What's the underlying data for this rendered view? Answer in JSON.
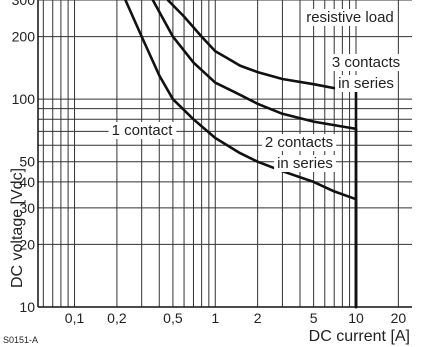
{
  "chart_data": {
    "type": "line",
    "xlabel": "DC current [A]",
    "ylabel": "DC voltage [Vdc]",
    "x_scale": "log",
    "y_scale": "log",
    "xlim": [
      0.055,
      25
    ],
    "ylim": [
      10,
      300
    ],
    "x_ticks": [
      0.1,
      0.2,
      0.5,
      1,
      2,
      5,
      10,
      20
    ],
    "x_tick_labels": [
      "0,1",
      "0,2",
      "0,5",
      "1",
      "2",
      "5",
      "10",
      "20"
    ],
    "y_ticks": [
      10,
      20,
      30,
      40,
      50,
      100,
      200,
      300
    ],
    "y_tick_labels": [
      "10",
      "20",
      "30",
      "40",
      "50",
      "100",
      "200",
      "300"
    ],
    "grid": true,
    "reference_code": "S0151-A",
    "annotations": [
      {
        "text": "resistive load"
      },
      {
        "text": "3 contacts"
      },
      {
        "text": "in series"
      },
      {
        "text": "1 contact"
      },
      {
        "text": "2 contacts"
      },
      {
        "text": "in series"
      }
    ],
    "series": [
      {
        "name": "1 contact",
        "x": [
          0.23,
          0.3,
          0.4,
          0.5,
          0.7,
          1,
          1.5,
          2,
          3,
          5,
          7,
          10,
          10
        ],
        "y": [
          300,
          200,
          130,
          100,
          80,
          65,
          55,
          50,
          45,
          40,
          36,
          33,
          10
        ]
      },
      {
        "name": "2 contacts in series",
        "x": [
          0.36,
          0.5,
          0.7,
          1,
          1.5,
          2,
          3,
          5,
          7,
          10,
          10
        ],
        "y": [
          300,
          200,
          150,
          120,
          105,
          95,
          85,
          78,
          75,
          72,
          10
        ]
      },
      {
        "name": "3 contacts in series",
        "x": [
          0.46,
          0.6,
          0.8,
          1,
          1.5,
          2,
          3,
          5,
          7,
          10,
          10
        ],
        "y": [
          300,
          250,
          200,
          170,
          145,
          135,
          125,
          118,
          113,
          110,
          10
        ]
      }
    ]
  }
}
